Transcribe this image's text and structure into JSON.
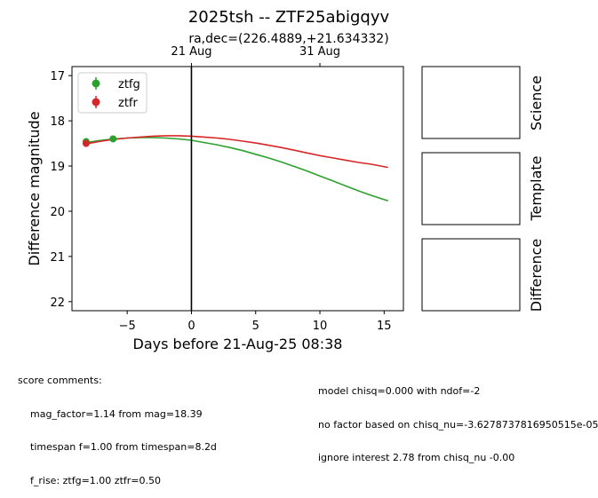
{
  "figure": {
    "title": "2025tsh -- ZTF25abigqyv",
    "subtitle": "ra,dec=(226.4889,+21.634332)"
  },
  "chart_data": {
    "type": "line",
    "xlabel": "Days before 21-Aug-25 08:38",
    "ylabel": "Difference magnitude",
    "xlim": [
      -9.3,
      16.5
    ],
    "ylim": [
      22.2,
      16.8
    ],
    "y_inverted": true,
    "xticks": [
      -5,
      0,
      5,
      10,
      15
    ],
    "xtick_labels": [
      "−5",
      "0",
      "5",
      "10",
      "15"
    ],
    "yticks": [
      17,
      18,
      19,
      20,
      21,
      22
    ],
    "ytick_labels": [
      "17",
      "18",
      "19",
      "20",
      "21",
      "22"
    ],
    "top_axis_ticks": [
      {
        "x": 0,
        "label": "21 Aug"
      },
      {
        "x": 10,
        "label": "31 Aug"
      }
    ],
    "vline_x": 0,
    "legend_position": "top-left",
    "series": [
      {
        "name": "ztfg",
        "color": "#2ca02c",
        "points": [
          {
            "x": -8.2,
            "y": 18.46
          },
          {
            "x": -6.1,
            "y": 18.4
          }
        ],
        "model_x": [
          -8.2,
          -7,
          -6,
          -5,
          -4,
          -3,
          -2,
          -1,
          0,
          1,
          2,
          3,
          4,
          5,
          6,
          7,
          8,
          9,
          10,
          11,
          12,
          13,
          14,
          15.3
        ],
        "model_y": [
          18.48,
          18.43,
          18.4,
          18.38,
          18.37,
          18.37,
          18.38,
          18.4,
          18.43,
          18.48,
          18.53,
          18.59,
          18.66,
          18.74,
          18.82,
          18.91,
          19.01,
          19.11,
          19.22,
          19.33,
          19.44,
          19.55,
          19.65,
          19.77
        ]
      },
      {
        "name": "ztfr",
        "color": "#d62728",
        "points": [
          {
            "x": -8.2,
            "y": 18.5
          }
        ],
        "model_x": [
          -8.2,
          -7,
          -6,
          -5,
          -4,
          -3,
          -2,
          -1,
          0,
          1,
          2,
          3,
          4,
          5,
          6,
          7,
          8,
          9,
          10,
          11,
          12,
          13,
          14,
          15.3
        ],
        "model_y": [
          18.51,
          18.45,
          18.41,
          18.38,
          18.36,
          18.34,
          18.33,
          18.33,
          18.34,
          18.36,
          18.38,
          18.41,
          18.45,
          18.49,
          18.54,
          18.59,
          18.65,
          18.71,
          18.77,
          18.82,
          18.87,
          18.92,
          18.96,
          19.03
        ]
      }
    ]
  },
  "panels": [
    {
      "label": "Science"
    },
    {
      "label": "Template"
    },
    {
      "label": "Difference"
    }
  ],
  "comments_left": {
    "header": "score comments:",
    "lines": [
      "mag_factor=1.14 from mag=18.39",
      "timespan f=1.00 from timespan=8.2d",
      "f_rise: ztfg=1.00 ztfr=0.50"
    ]
  },
  "comments_right": {
    "lines": [
      "model chisq=0.000 with ndof=-2",
      "no factor based on chisq_nu=-3.6278737816950515e-05",
      "ignore interest 2.78 from chisq_nu -0.00"
    ]
  }
}
